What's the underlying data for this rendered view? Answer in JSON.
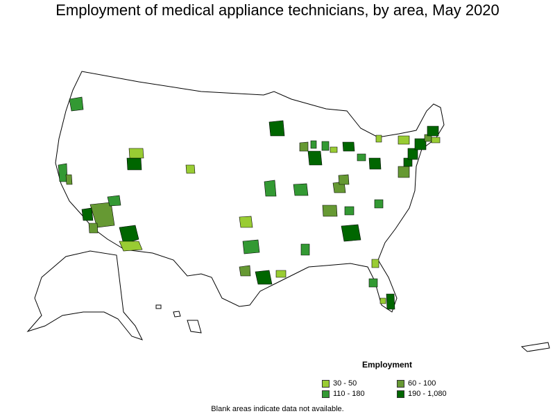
{
  "title": "Employment of medical appliance technicians, by area, May 2020",
  "legend": {
    "title": "Employment",
    "classes": [
      {
        "label": "30 - 50",
        "color": "#99cc33"
      },
      {
        "label": "60 - 100",
        "color": "#669933"
      },
      {
        "label": "110 - 180",
        "color": "#339933"
      },
      {
        "label": "190 - 1,080",
        "color": "#006600"
      }
    ]
  },
  "note": "Blank areas indicate data not available.",
  "colors": {
    "border": "#000000",
    "blank": "#ffffff"
  }
}
